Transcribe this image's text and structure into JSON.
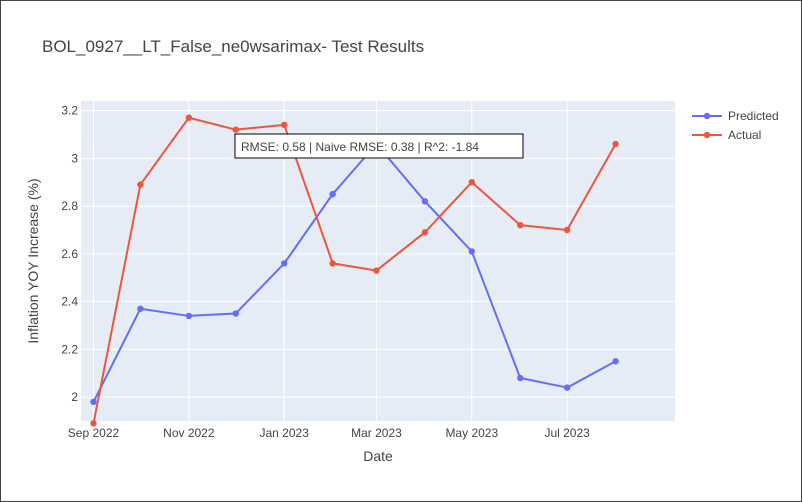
{
  "chart_data": {
    "type": "line",
    "title": "BOL_0927__LT_False_ne0wsarimax- Test Results",
    "xlabel": "Date",
    "ylabel": "Inflation YOY Increase (%)",
    "x": [
      "2022-09-01",
      "2022-10-01",
      "2022-11-01",
      "2022-12-01",
      "2023-01-01",
      "2023-02-01",
      "2023-03-01",
      "2023-04-01",
      "2023-05-01",
      "2023-06-01",
      "2023-07-01",
      "2023-08-01"
    ],
    "x_ticks": [
      {
        "date": "2022-09-01",
        "label": "Sep 2022"
      },
      {
        "date": "2022-11-01",
        "label": "Nov 2022"
      },
      {
        "date": "2023-01-01",
        "label": "Jan 2023"
      },
      {
        "date": "2023-03-01",
        "label": "Mar 2023"
      },
      {
        "date": "2023-05-01",
        "label": "May 2023"
      },
      {
        "date": "2023-07-01",
        "label": "Jul 2023"
      }
    ],
    "y_ticks": [
      2,
      2.2,
      2.4,
      2.6,
      2.8,
      3,
      3.2
    ],
    "y_tick_labels": [
      "2",
      "2.2",
      "2.4",
      "2.6",
      "2.8",
      "3",
      "3.2"
    ],
    "ylim": [
      1.9,
      3.24
    ],
    "xlim": [
      "2022-08-24",
      "2023-09-08"
    ],
    "grid": true,
    "legend_position": "top-right",
    "series": [
      {
        "name": "Predicted",
        "color": "#636efa",
        "values": [
          1.98,
          2.37,
          2.34,
          2.35,
          2.56,
          2.85,
          3.06,
          2.82,
          2.61,
          2.08,
          2.04,
          2.15
        ]
      },
      {
        "name": "Actual",
        "color": "#ef553b",
        "values": [
          1.89,
          2.89,
          3.17,
          3.12,
          3.14,
          2.56,
          2.53,
          2.69,
          2.9,
          2.72,
          2.7,
          3.06
        ]
      }
    ],
    "annotation": "RMSE: 0.58 | Naive RMSE: 0.38 | R^2: -1.84"
  }
}
